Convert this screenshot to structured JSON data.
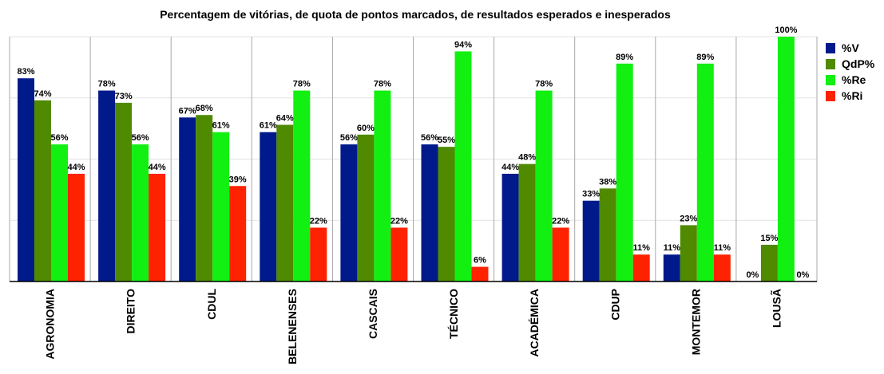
{
  "chart_data": {
    "type": "bar",
    "title": "Percentagem de vitórias, de quota de pontos marcados, de resultados esperados e inesperados",
    "categories": [
      "AGRONOMIA",
      "DIREITO",
      "CDUL",
      "BELENENSES",
      "CASCAIS",
      "TÉCNICO",
      "ACADÉMICA",
      "CDUP",
      "MONTEMOR",
      "LOUSÃ"
    ],
    "series": [
      {
        "name": "%V",
        "color": "#001a8c",
        "values": [
          83,
          78,
          67,
          61,
          56,
          56,
          44,
          33,
          11,
          0
        ],
        "labels": [
          "83%",
          "78%",
          "67%",
          "61%",
          "56%",
          "56%",
          "44%",
          "33%",
          "11%",
          "0%"
        ]
      },
      {
        "name": "QdP%",
        "color": "#4f8a00",
        "values": [
          74,
          73,
          68,
          64,
          60,
          55,
          48,
          38,
          23,
          15
        ],
        "labels": [
          "74%",
          "73%",
          "68%",
          "64%",
          "60%",
          "55%",
          "48%",
          "38%",
          "23%",
          "15%"
        ]
      },
      {
        "name": "%Re",
        "color": "#12f012",
        "values": [
          56,
          56,
          61,
          78,
          78,
          94,
          78,
          89,
          89,
          100
        ],
        "labels": [
          "56%",
          "56%",
          "61%",
          "78%",
          "78%",
          "94%",
          "78%",
          "89%",
          "89%",
          "100%"
        ]
      },
      {
        "name": "%Ri",
        "color": "#ff2200",
        "values": [
          44,
          44,
          39,
          22,
          22,
          6,
          22,
          11,
          11,
          0
        ],
        "labels": [
          "44%",
          "44%",
          "39%",
          "22%",
          "22%",
          "6%",
          "22%",
          "11%",
          "11%",
          "0%"
        ]
      }
    ],
    "ylim": [
      0,
      100
    ],
    "grid": true,
    "legend_position": "right"
  }
}
